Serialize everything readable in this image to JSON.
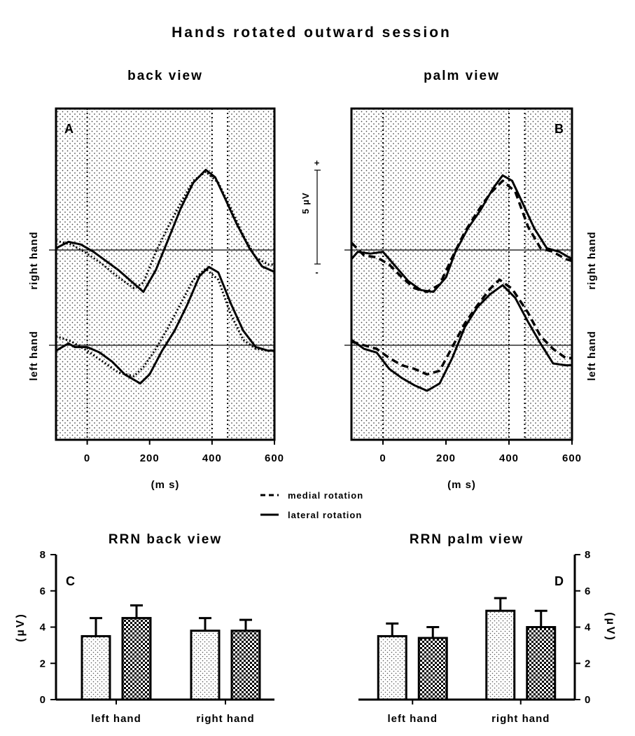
{
  "figure": {
    "title": "Hands rotated outward session",
    "legend": [
      {
        "label": "medial rotation",
        "style": "dashed"
      },
      {
        "label": "lateral rotation",
        "style": "solid"
      }
    ],
    "scale_bar": {
      "label": "5 µV",
      "plus": "+",
      "minus": "-"
    }
  },
  "chart_data": [
    {
      "type": "line",
      "panel": "A",
      "title": "back view",
      "xlabel": "(m s)",
      "xlim": [
        -100,
        600
      ],
      "xticks": [
        "0",
        "200",
        "400",
        "600"
      ],
      "row_labels": [
        "right hand",
        "left hand"
      ],
      "windows_ms": [
        [
          -100,
          400
        ],
        [
          450,
          600
        ]
      ],
      "series": [
        {
          "hand": "right hand",
          "style": "dotted",
          "points": [
            [
              -100,
              1.0
            ],
            [
              -50,
              0.6
            ],
            [
              0,
              -0.4
            ],
            [
              50,
              -1.6
            ],
            [
              100,
              -3.0
            ],
            [
              150,
              -4.2
            ],
            [
              180,
              -3.6
            ],
            [
              220,
              -0.2
            ],
            [
              260,
              2.6
            ],
            [
              300,
              5.2
            ],
            [
              340,
              7.6
            ],
            [
              380,
              8.6
            ],
            [
              420,
              7.4
            ],
            [
              460,
              4.6
            ],
            [
              500,
              1.6
            ],
            [
              540,
              -0.8
            ],
            [
              580,
              -1.6
            ],
            [
              600,
              -1.6
            ]
          ]
        },
        {
          "hand": "right hand",
          "style": "solid",
          "points": [
            [
              -100,
              0.2
            ],
            [
              -60,
              0.9
            ],
            [
              -20,
              0.6
            ],
            [
              20,
              -0.2
            ],
            [
              60,
              -1.2
            ],
            [
              100,
              -2.2
            ],
            [
              140,
              -3.4
            ],
            [
              180,
              -4.6
            ],
            [
              220,
              -2.2
            ],
            [
              260,
              1.2
            ],
            [
              300,
              4.6
            ],
            [
              340,
              7.4
            ],
            [
              380,
              8.8
            ],
            [
              410,
              8.0
            ],
            [
              440,
              5.8
            ],
            [
              480,
              2.8
            ],
            [
              520,
              0.2
            ],
            [
              560,
              -1.8
            ],
            [
              600,
              -2.4
            ]
          ]
        },
        {
          "hand": "left hand",
          "style": "dotted",
          "points": [
            [
              -100,
              1.0
            ],
            [
              -50,
              0.4
            ],
            [
              0,
              -0.6
            ],
            [
              50,
              -1.8
            ],
            [
              100,
              -3.0
            ],
            [
              150,
              -3.4
            ],
            [
              180,
              -2.4
            ],
            [
              220,
              -0.4
            ],
            [
              260,
              2.0
            ],
            [
              300,
              4.6
            ],
            [
              340,
              7.2
            ],
            [
              380,
              8.4
            ],
            [
              420,
              7.2
            ],
            [
              460,
              3.4
            ],
            [
              500,
              0.6
            ],
            [
              540,
              -0.4
            ],
            [
              580,
              -0.6
            ],
            [
              600,
              -0.6
            ]
          ]
        },
        {
          "hand": "left hand",
          "style": "solid",
          "points": [
            [
              -100,
              -0.6
            ],
            [
              -60,
              0.2
            ],
            [
              -40,
              -0.2
            ],
            [
              0,
              -0.2
            ],
            [
              40,
              -0.8
            ],
            [
              80,
              -1.8
            ],
            [
              120,
              -3.2
            ],
            [
              170,
              -4.2
            ],
            [
              200,
              -3.2
            ],
            [
              240,
              -0.6
            ],
            [
              280,
              1.6
            ],
            [
              320,
              4.4
            ],
            [
              360,
              7.6
            ],
            [
              390,
              8.6
            ],
            [
              420,
              8.0
            ],
            [
              460,
              4.6
            ],
            [
              500,
              1.6
            ],
            [
              540,
              -0.2
            ],
            [
              580,
              -0.6
            ],
            [
              600,
              -0.6
            ]
          ]
        }
      ]
    },
    {
      "type": "line",
      "panel": "B",
      "title": "palm view",
      "xlabel": "(m s)",
      "xlim": [
        -100,
        600
      ],
      "xticks": [
        "0",
        "200",
        "400",
        "600"
      ],
      "row_labels": [
        "right hand",
        "left hand"
      ],
      "windows_ms": [
        [
          -100,
          400
        ],
        [
          450,
          600
        ]
      ],
      "series": [
        {
          "hand": "right hand",
          "style": "dashed",
          "points": [
            [
              -100,
              0.8
            ],
            [
              -60,
              -0.6
            ],
            [
              -20,
              -0.8
            ],
            [
              20,
              -1.6
            ],
            [
              60,
              -3.0
            ],
            [
              100,
              -4.2
            ],
            [
              140,
              -4.6
            ],
            [
              180,
              -3.8
            ],
            [
              220,
              -0.8
            ],
            [
              260,
              2.0
            ],
            [
              300,
              4.2
            ],
            [
              340,
              6.2
            ],
            [
              380,
              7.6
            ],
            [
              420,
              6.4
            ],
            [
              460,
              2.6
            ],
            [
              500,
              0.2
            ],
            [
              540,
              -0.2
            ],
            [
              580,
              -1.0
            ],
            [
              600,
              -1.2
            ]
          ]
        },
        {
          "hand": "right hand",
          "style": "solid",
          "points": [
            [
              -100,
              -1.0
            ],
            [
              -80,
              -0.2
            ],
            [
              -40,
              -0.4
            ],
            [
              0,
              -0.2
            ],
            [
              40,
              -1.8
            ],
            [
              80,
              -3.4
            ],
            [
              120,
              -4.4
            ],
            [
              160,
              -4.6
            ],
            [
              200,
              -3.0
            ],
            [
              230,
              -0.2
            ],
            [
              270,
              2.4
            ],
            [
              310,
              4.4
            ],
            [
              350,
              6.8
            ],
            [
              380,
              8.2
            ],
            [
              410,
              7.6
            ],
            [
              440,
              5.4
            ],
            [
              480,
              2.4
            ],
            [
              520,
              0.2
            ],
            [
              560,
              -0.2
            ],
            [
              600,
              -1.0
            ]
          ]
        },
        {
          "hand": "left hand",
          "style": "dashed",
          "points": [
            [
              -100,
              0.4
            ],
            [
              -60,
              0.0
            ],
            [
              -20,
              -0.4
            ],
            [
              20,
              -1.4
            ],
            [
              60,
              -2.2
            ],
            [
              100,
              -2.6
            ],
            [
              140,
              -3.2
            ],
            [
              180,
              -2.8
            ],
            [
              220,
              -0.2
            ],
            [
              260,
              2.4
            ],
            [
              300,
              4.4
            ],
            [
              340,
              6.2
            ],
            [
              370,
              7.2
            ],
            [
              410,
              6.2
            ],
            [
              460,
              3.6
            ],
            [
              500,
              1.0
            ],
            [
              540,
              -0.4
            ],
            [
              580,
              -1.4
            ],
            [
              600,
              -1.4
            ]
          ]
        },
        {
          "hand": "left hand",
          "style": "solid",
          "points": [
            [
              -100,
              0.6
            ],
            [
              -60,
              -0.4
            ],
            [
              -20,
              -0.8
            ],
            [
              20,
              -2.6
            ],
            [
              60,
              -3.6
            ],
            [
              100,
              -4.4
            ],
            [
              140,
              -5.0
            ],
            [
              180,
              -4.2
            ],
            [
              220,
              -1.4
            ],
            [
              260,
              2.0
            ],
            [
              300,
              4.2
            ],
            [
              340,
              5.6
            ],
            [
              380,
              6.6
            ],
            [
              420,
              5.2
            ],
            [
              460,
              2.6
            ],
            [
              500,
              0.2
            ],
            [
              540,
              -2.0
            ],
            [
              580,
              -2.2
            ],
            [
              600,
              -2.2
            ]
          ]
        }
      ]
    },
    {
      "type": "bar",
      "panel": "C",
      "title": "RRN back view",
      "ylabel": "(µV)",
      "ylim": [
        0,
        8
      ],
      "yticks": [
        "0",
        "2",
        "4",
        "6",
        "8"
      ],
      "categories": [
        "left hand",
        "right hand"
      ],
      "series": [
        {
          "pattern": "dotted",
          "values": [
            3.5,
            3.8
          ],
          "error": [
            1.0,
            0.7
          ]
        },
        {
          "pattern": "checkered",
          "values": [
            4.5,
            3.8
          ],
          "error": [
            0.7,
            0.6
          ]
        }
      ]
    },
    {
      "type": "bar",
      "panel": "D",
      "title": "RRN palm view",
      "ylabel": "(µV)",
      "ylim": [
        0,
        8
      ],
      "yticks": [
        "0",
        "2",
        "4",
        "6",
        "8"
      ],
      "categories": [
        "left hand",
        "right hand"
      ],
      "series": [
        {
          "pattern": "dotted",
          "values": [
            3.5,
            4.9
          ],
          "error": [
            0.7,
            0.7
          ]
        },
        {
          "pattern": "checkered",
          "values": [
            3.4,
            4.0
          ],
          "error": [
            0.6,
            0.9
          ]
        }
      ]
    }
  ]
}
